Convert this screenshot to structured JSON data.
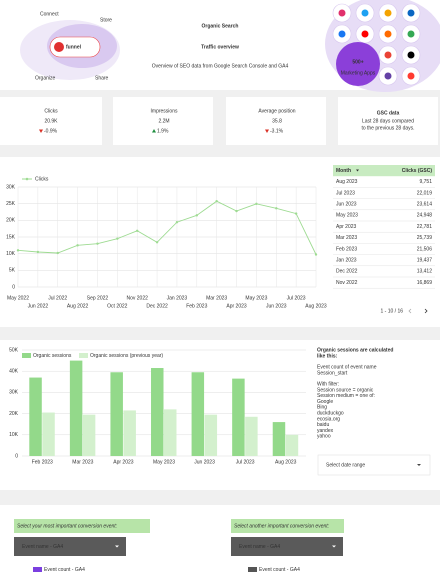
{
  "header": {
    "logo_labels": [
      "Connect",
      "Store",
      "Organize",
      "Share"
    ],
    "logo_text": "funnel",
    "title_lines": [
      "Organic Search",
      "Traffic overview"
    ],
    "subtitle": "Overview of SEO data from Google Search Console and GA4",
    "badge_number": "500+",
    "badge_text": "Marketing Apps"
  },
  "kpis": [
    {
      "label": "Clicks",
      "value": "20.9K",
      "change": "-0.9%",
      "direction": "down"
    },
    {
      "label": "Impressions",
      "value": "2.2M",
      "change": "1.9%",
      "direction": "up"
    },
    {
      "label": "Average position",
      "value": "35.8",
      "change": "-3.1%",
      "direction": "down"
    }
  ],
  "gsc_note": {
    "title": "GSC data",
    "text": [
      "Last 28 days compared",
      "to the previous 28 days."
    ]
  },
  "chart_data": [
    {
      "type": "line",
      "categories": [
        "May 2022",
        "Jun 2022",
        "Jul 2022",
        "Aug 2022",
        "Sep 2022",
        "Oct 2022",
        "Nov 2022",
        "Dec 2022",
        "Jan 2023",
        "Feb 2023",
        "Mar 2023",
        "Apr 2023",
        "May 2023",
        "Jun 2023",
        "Jul 2023",
        "Aug 2023"
      ],
      "series": [
        {
          "name": "Clicks",
          "color": "#9edb92",
          "values": [
            11000,
            10500,
            10200,
            12500,
            13000,
            14500,
            16869,
            13412,
            19437,
            21506,
            25739,
            22781,
            24948,
            23614,
            22019,
            9751
          ]
        }
      ],
      "ylim": [
        0,
        30000
      ],
      "yticks": [
        0,
        {
          "value": 5000,
          "label": "5K"
        },
        {
          "value": 10000,
          "label": "10K"
        },
        {
          "value": 15000,
          "label": "15K"
        },
        {
          "value": 20000,
          "label": "20K"
        },
        {
          "value": 25000,
          "label": "25K"
        },
        {
          "value": 30000,
          "label": "30K"
        }
      ],
      "grid": true
    },
    {
      "type": "bar",
      "categories": [
        "Feb 2023",
        "Mar 2023",
        "Apr 2023",
        "May 2023",
        "Jun 2023",
        "Jul 2023",
        "Aug 2023"
      ],
      "series": [
        {
          "name": "Organic sessions",
          "color": "#93d98a",
          "values": [
            37000,
            45000,
            39500,
            41500,
            39500,
            36500,
            16000
          ]
        },
        {
          "name": "Organic sessions (previous year)",
          "color": "#d3f0cd",
          "values": [
            20500,
            19500,
            21500,
            22000,
            19500,
            18500,
            10000
          ]
        }
      ],
      "ylim": [
        0,
        50000
      ],
      "yticks": [
        0,
        {
          "value": 10000,
          "label": "10K"
        },
        {
          "value": 20000,
          "label": "20K"
        },
        {
          "value": 30000,
          "label": "30K"
        },
        {
          "value": 40000,
          "label": "40K"
        },
        {
          "value": 50000,
          "label": "50K"
        }
      ],
      "grid": true
    }
  ],
  "table": {
    "columns": [
      "Month",
      "Clicks (GSC)"
    ],
    "rows": [
      [
        "Aug 2023",
        "9,751"
      ],
      [
        "Jul 2023",
        "22,019"
      ],
      [
        "Jun 2023",
        "23,614"
      ],
      [
        "May 2023",
        "24,948"
      ],
      [
        "Apr 2023",
        "22,781"
      ],
      [
        "Mar 2023",
        "25,739"
      ],
      [
        "Feb 2023",
        "21,506"
      ],
      [
        "Jan 2023",
        "19,437"
      ],
      [
        "Dec 2022",
        "13,412"
      ],
      [
        "Nov 2022",
        "16,869"
      ]
    ],
    "pagination": "1 - 10 / 16"
  },
  "notes": {
    "title_lines": [
      "Organic sessions are calculated",
      "like this:"
    ],
    "metric": "Event count of event name",
    "event": "Session_start",
    "filter_title": "With filter:",
    "filters": [
      "Session source = organic",
      "Session medium = one of:"
    ],
    "mediums": [
      "Google",
      "Bing",
      "duckduckgo",
      "ecosia.org",
      "baidu",
      "yandex",
      "yahoo"
    ]
  },
  "date_selector": "Select date range",
  "conversion_selectors": [
    {
      "prompt": "Select your most important conversion event:",
      "dropdown": "Event name - GA4"
    },
    {
      "prompt": "Select another important conversion event:",
      "dropdown": "Event name - GA4"
    }
  ],
  "bottom_legends": [
    "Event count - GA4",
    "Event count - GA4"
  ]
}
